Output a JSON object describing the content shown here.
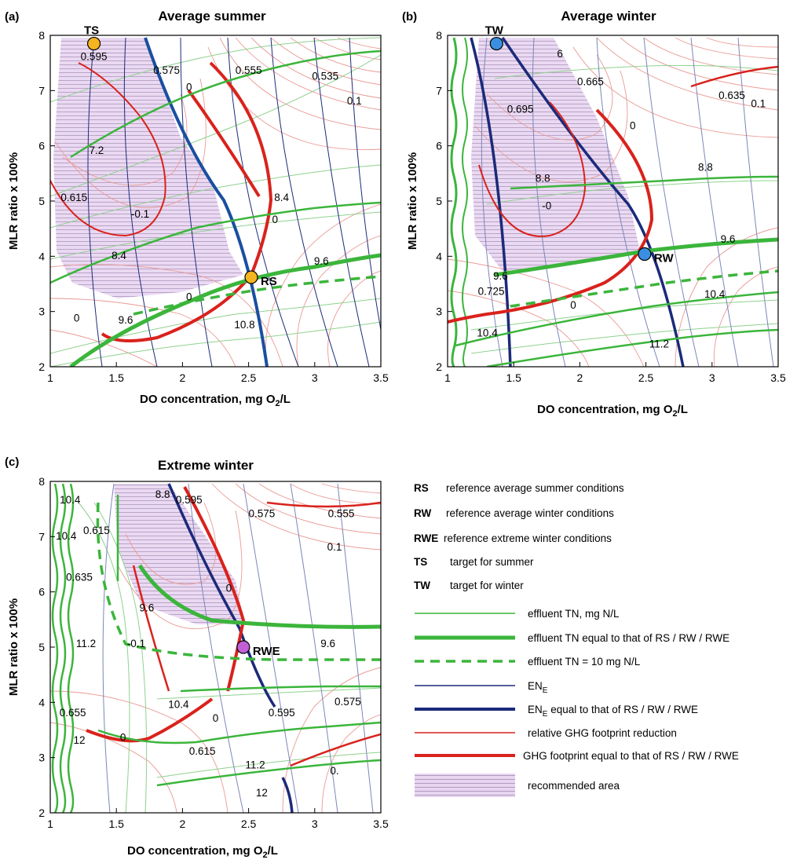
{
  "panels": [
    {
      "tag": "(a)",
      "title": "Average summer",
      "xlabel": "DO concentration, mg O",
      "xlabel_sub": "2",
      "xlabel_tail": "/L",
      "ylabel": "MLR ratio x 100%",
      "xticks": [
        "1",
        "1.5",
        "2",
        "2.5",
        "3",
        "3.5"
      ],
      "yticks": [
        "2",
        "3",
        "4",
        "5",
        "6",
        "7",
        "8"
      ]
    },
    {
      "tag": "(b)",
      "title": "Average winter",
      "xlabel": "DO concentration, mg O",
      "xlabel_sub": "2",
      "xlabel_tail": "/L",
      "ylabel": "MLR ratio x 100%",
      "xticks": [
        "1",
        "1.5",
        "2",
        "2.5",
        "3",
        "3.5"
      ],
      "yticks": [
        "2",
        "3",
        "4",
        "5",
        "6",
        "7",
        "8"
      ]
    },
    {
      "tag": "(c)",
      "title": "Extreme winter",
      "xlabel": "DO concentration, mg O",
      "xlabel_sub": "2",
      "xlabel_tail": "/L",
      "ylabel": "MLR ratio x 100%",
      "xticks": [
        "1",
        "1.5",
        "2",
        "2.5",
        "3",
        "3.5"
      ],
      "yticks": [
        "2",
        "3",
        "4",
        "5",
        "6",
        "7",
        "8"
      ]
    }
  ],
  "legend": {
    "abbreviations": [
      {
        "abbr": "RS",
        "text": "reference average summer conditions"
      },
      {
        "abbr": "RW",
        "text": "reference average winter conditions"
      },
      {
        "abbr": "RWE",
        "text": "reference extreme winter conditions"
      },
      {
        "abbr": "TS",
        "text": "target for summer"
      },
      {
        "abbr": "TW",
        "text": "target for winter"
      }
    ],
    "lines": [
      {
        "text": "effluent TN, mg N/L"
      },
      {
        "text": "effluent TN equal to that of RS / RW / RWE"
      },
      {
        "text": "effluent TN = 10 mg N/L"
      },
      {
        "text": "EN",
        "sub": "E"
      },
      {
        "text": "EN",
        "sub": "E",
        "tail": " equal to that of RS / RW / RWE"
      },
      {
        "text": "relative GHG footprint reduction"
      },
      {
        "text": "GHG footprint equal to that of RS / RW / RWE"
      },
      {
        "text": "recommended area"
      }
    ]
  },
  "colors": {
    "tn": "#3bb53b",
    "tn_light": "#8fd18f",
    "en": "#1b2a7a",
    "en_light": "#7c86b8",
    "en_blue": "#1a4fa0",
    "ghg": "#d9221c",
    "ghg_light": "#e99a95",
    "area_fill": "#e6d2ee",
    "area_hatch": "#a58bb5",
    "ts_point": "#f5b520",
    "tw_point": "#3a8fe0",
    "rwe_point": "#c35fd6"
  },
  "chart_data": [
    {
      "type": "contour",
      "panel": "(a)",
      "title": "Average summer",
      "xlabel": "DO concentration, mg O2/L",
      "ylabel": "MLR ratio x 100%",
      "xlim": [
        1,
        3.5
      ],
      "ylim": [
        2,
        8
      ],
      "points": [
        {
          "label": "TS",
          "x": 1.33,
          "y": 7.85,
          "color": "#f5b520"
        },
        {
          "label": "RS",
          "x": 2.52,
          "y": 3.62,
          "color": "#f5b520"
        }
      ],
      "contour_labels": [
        {
          "text": "0.595",
          "x": 1.33,
          "y": 7.55
        },
        {
          "text": "0.575",
          "x": 1.88,
          "y": 7.3
        },
        {
          "text": "0.555",
          "x": 2.5,
          "y": 7.3
        },
        {
          "text": "0.535",
          "x": 3.08,
          "y": 7.2
        },
        {
          "text": "0",
          "x": 2.05,
          "y": 7.0
        },
        {
          "text": "0.1",
          "x": 3.3,
          "y": 6.75
        },
        {
          "text": "7.2",
          "x": 1.35,
          "y": 5.85
        },
        {
          "text": "0.615",
          "x": 1.18,
          "y": 5.0
        },
        {
          "text": "-0.1",
          "x": 1.68,
          "y": 4.7
        },
        {
          "text": "8.4",
          "x": 2.75,
          "y": 5.0
        },
        {
          "text": "0",
          "x": 2.7,
          "y": 4.6
        },
        {
          "text": "8.4",
          "x": 1.52,
          "y": 3.95
        },
        {
          "text": "9.6",
          "x": 3.05,
          "y": 3.85
        },
        {
          "text": "0",
          "x": 1.2,
          "y": 2.82
        },
        {
          "text": "9.6",
          "x": 1.57,
          "y": 2.78
        },
        {
          "text": "0",
          "x": 2.05,
          "y": 3.2
        },
        {
          "text": "10.8",
          "x": 2.47,
          "y": 2.7
        }
      ]
    },
    {
      "type": "contour",
      "panel": "(b)",
      "title": "Average winter",
      "xlabel": "DO concentration, mg O2/L",
      "ylabel": "MLR ratio x 100%",
      "xlim": [
        1,
        3.5
      ],
      "ylim": [
        2,
        8
      ],
      "points": [
        {
          "label": "TW",
          "x": 1.37,
          "y": 7.85,
          "color": "#3a8fe0"
        },
        {
          "label": "RW",
          "x": 2.49,
          "y": 4.04,
          "color": "#3a8fe0"
        }
      ],
      "contour_labels": [
        {
          "text": "6",
          "x": 1.85,
          "y": 7.6
        },
        {
          "text": "0.665",
          "x": 2.08,
          "y": 7.1
        },
        {
          "text": "0.695",
          "x": 1.55,
          "y": 6.6
        },
        {
          "text": "0.635",
          "x": 3.15,
          "y": 6.85
        },
        {
          "text": "0.1",
          "x": 3.35,
          "y": 6.7
        },
        {
          "text": "0",
          "x": 2.4,
          "y": 6.3
        },
        {
          "text": "8.8",
          "x": 1.72,
          "y": 5.35
        },
        {
          "text": "8.8",
          "x": 2.95,
          "y": 5.55
        },
        {
          "text": "-0",
          "x": 1.75,
          "y": 4.85
        },
        {
          "text": "9.6",
          "x": 3.12,
          "y": 4.25
        },
        {
          "text": "9.6",
          "x": 1.4,
          "y": 3.58
        },
        {
          "text": "0.725",
          "x": 1.33,
          "y": 3.3
        },
        {
          "text": "0",
          "x": 1.95,
          "y": 3.05
        },
        {
          "text": "10.4",
          "x": 3.02,
          "y": 3.25
        },
        {
          "text": "10.4",
          "x": 1.3,
          "y": 2.55
        },
        {
          "text": "11.2",
          "x": 2.6,
          "y": 2.35
        }
      ]
    },
    {
      "type": "contour",
      "panel": "(c)",
      "title": "Extreme winter",
      "xlabel": "DO concentration, mg O2/L",
      "ylabel": "MLR ratio x 100%",
      "xlim": [
        1,
        3.5
      ],
      "ylim": [
        2,
        8
      ],
      "points": [
        {
          "label": "RWE",
          "x": 2.46,
          "y": 5.0,
          "color": "#c35fd6"
        }
      ],
      "contour_labels": [
        {
          "text": "8.8",
          "x": 1.85,
          "y": 7.7
        },
        {
          "text": "0.595",
          "x": 2.05,
          "y": 7.6
        },
        {
          "text": "0.575",
          "x": 2.6,
          "y": 7.35
        },
        {
          "text": "0.555",
          "x": 3.2,
          "y": 7.35
        },
        {
          "text": "0.1",
          "x": 3.15,
          "y": 6.75
        },
        {
          "text": "10.4",
          "x": 1.15,
          "y": 7.6
        },
        {
          "text": "10.4",
          "x": 1.12,
          "y": 6.95
        },
        {
          "text": "0.615",
          "x": 1.35,
          "y": 7.05
        },
        {
          "text": "0.635",
          "x": 1.22,
          "y": 6.2
        },
        {
          "text": "0",
          "x": 2.35,
          "y": 6.0
        },
        {
          "text": "9.6",
          "x": 1.73,
          "y": 5.65
        },
        {
          "text": "-0.1",
          "x": 1.65,
          "y": 5.0
        },
        {
          "text": "9.6",
          "x": 3.1,
          "y": 5.0
        },
        {
          "text": "11.2",
          "x": 1.27,
          "y": 5.0
        },
        {
          "text": "10.4",
          "x": 1.97,
          "y": 3.9
        },
        {
          "text": "0",
          "x": 2.25,
          "y": 3.65
        },
        {
          "text": "0.595",
          "x": 2.75,
          "y": 3.75
        },
        {
          "text": "0.575",
          "x": 3.25,
          "y": 3.95
        },
        {
          "text": "0.655",
          "x": 1.17,
          "y": 3.75
        },
        {
          "text": "12",
          "x": 1.22,
          "y": 3.25
        },
        {
          "text": "0",
          "x": 1.55,
          "y": 3.3
        },
        {
          "text": "0.615",
          "x": 2.15,
          "y": 3.05
        },
        {
          "text": "11.2",
          "x": 2.55,
          "y": 2.8
        },
        {
          "text": "0.",
          "x": 3.15,
          "y": 2.7
        },
        {
          "text": "12",
          "x": 2.6,
          "y": 2.3
        }
      ]
    }
  ]
}
